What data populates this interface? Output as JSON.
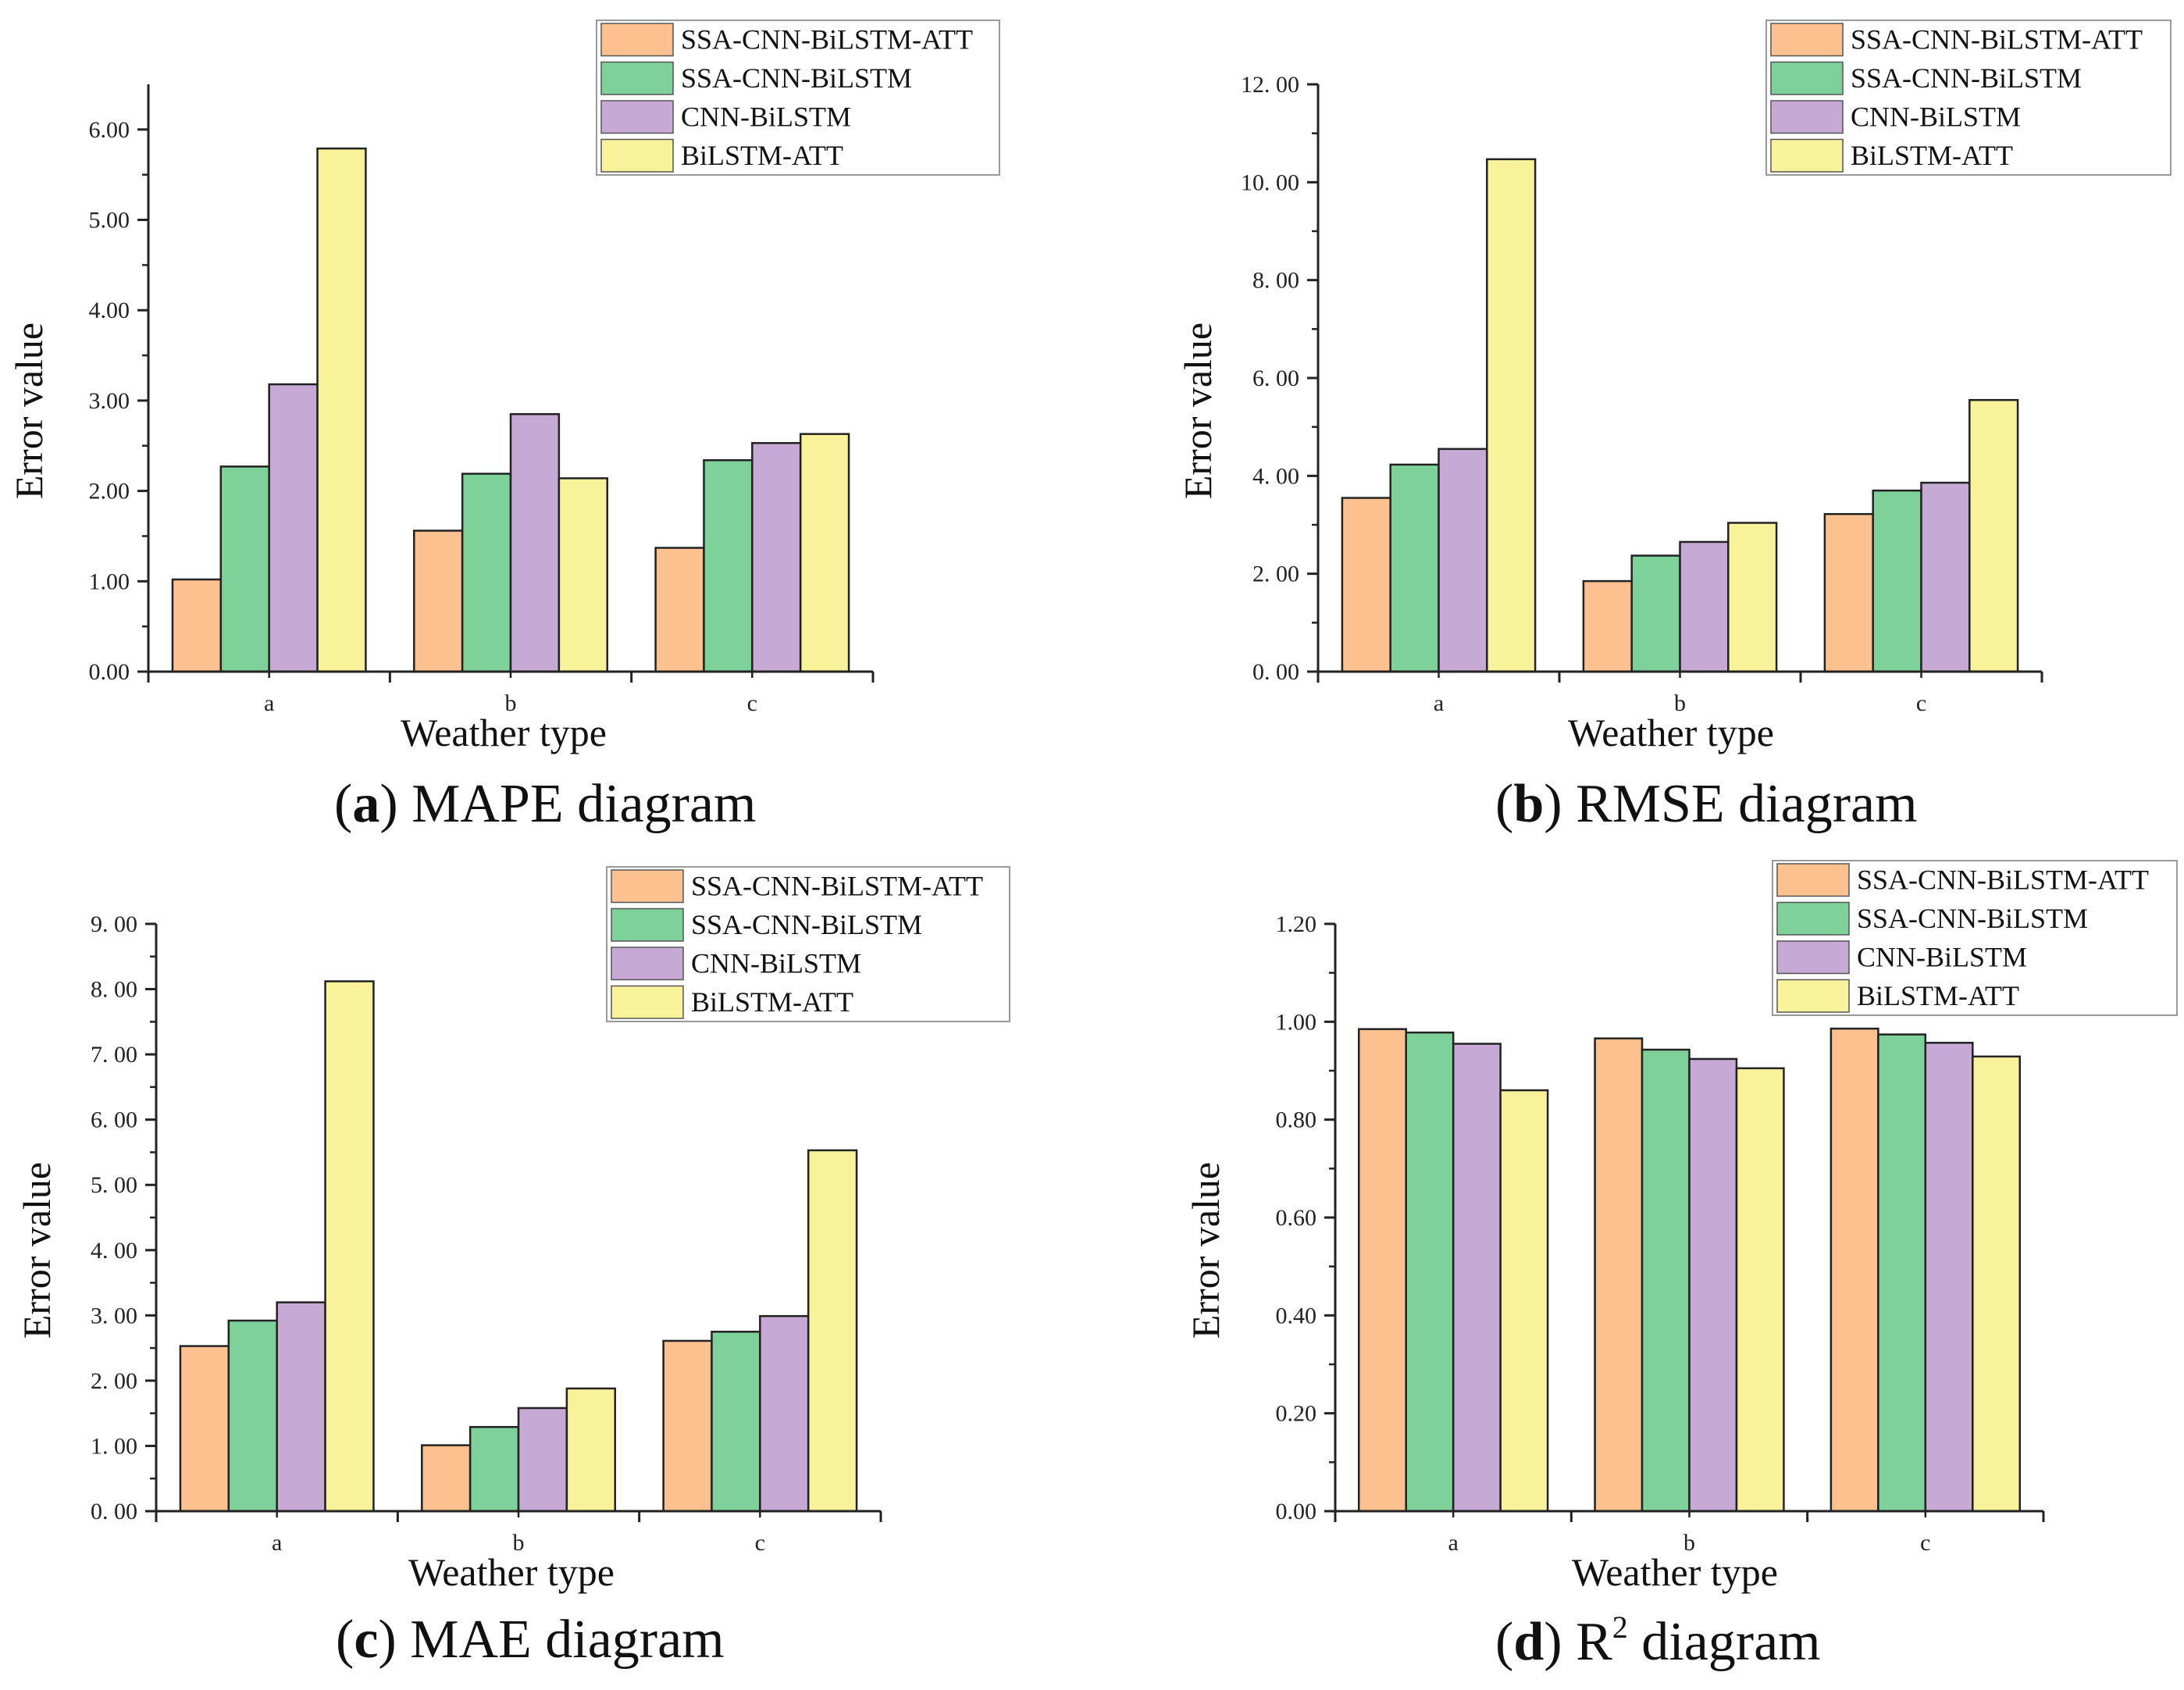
{
  "colors": {
    "SSA-CNN-BiLSTM-ATT": "#FDC190",
    "SSA-CNN-BiLSTM": "#7ED199",
    "CNN-BiLSTM": "#C6A9D4",
    "BiLSTM-ATT": "#F8F29A"
  },
  "captions": [
    {
      "letter": "a",
      "text": "MAPE diagram",
      "sup": ""
    },
    {
      "letter": "b",
      "text": "RMSE diagram",
      "sup": ""
    },
    {
      "letter": "c",
      "text": "MAE diagram",
      "sup": ""
    },
    {
      "letter": "d",
      "text": "R",
      "sup": "2",
      "suffix": " diagram"
    }
  ],
  "chart_data": [
    {
      "type": "bar",
      "title": "",
      "xlabel": "Weather type",
      "ylabel": "Error value",
      "categories": [
        "a",
        "b",
        "c"
      ],
      "ylim": [
        0,
        6.5
      ],
      "yticks": [
        0,
        1,
        2,
        3,
        4,
        5,
        6
      ],
      "yticklabels": [
        "0.00",
        "1.00",
        "2.00",
        "3.00",
        "4.00",
        "5.00",
        "6.00"
      ],
      "legend": "top-right",
      "series": [
        {
          "name": "SSA-CNN-BiLSTM-ATT",
          "values": [
            1.02,
            1.56,
            1.37
          ]
        },
        {
          "name": "SSA-CNN-BiLSTM",
          "values": [
            2.27,
            2.19,
            2.34
          ]
        },
        {
          "name": "CNN-BiLSTM",
          "values": [
            3.18,
            2.85,
            2.53
          ]
        },
        {
          "name": "BiLSTM-ATT",
          "values": [
            5.79,
            2.14,
            2.63
          ]
        }
      ]
    },
    {
      "type": "bar",
      "title": "",
      "xlabel": "Weather type",
      "ylabel": "Error value",
      "categories": [
        "a",
        "b",
        "c"
      ],
      "ylim": [
        0,
        12
      ],
      "yticks": [
        0,
        2,
        4,
        6,
        8,
        10,
        12
      ],
      "yticklabels": [
        "0. 00",
        "2. 00",
        "4. 00",
        "6. 00",
        "8. 00",
        "10. 00",
        "12. 00"
      ],
      "legend": "top-right",
      "series": [
        {
          "name": "SSA-CNN-BiLSTM-ATT",
          "values": [
            3.55,
            1.85,
            3.22
          ]
        },
        {
          "name": "SSA-CNN-BiLSTM",
          "values": [
            4.23,
            2.37,
            3.7
          ]
        },
        {
          "name": "CNN-BiLSTM",
          "values": [
            4.55,
            2.65,
            3.86
          ]
        },
        {
          "name": "BiLSTM-ATT",
          "values": [
            10.47,
            3.04,
            5.55
          ]
        }
      ]
    },
    {
      "type": "bar",
      "title": "",
      "xlabel": "Weather type",
      "ylabel": "Error value",
      "categories": [
        "a",
        "b",
        "c"
      ],
      "ylim": [
        0,
        9
      ],
      "yticks": [
        0,
        1,
        2,
        3,
        4,
        5,
        6,
        7,
        8,
        9
      ],
      "yticklabels": [
        "0. 00",
        "1. 00",
        "2. 00",
        "3. 00",
        "4. 00",
        "5. 00",
        "6. 00",
        "7. 00",
        "8. 00",
        "9. 00"
      ],
      "legend": "top-right",
      "series": [
        {
          "name": "SSA-CNN-BiLSTM-ATT",
          "values": [
            2.53,
            1.01,
            2.61
          ]
        },
        {
          "name": "SSA-CNN-BiLSTM",
          "values": [
            2.92,
            1.29,
            2.75
          ]
        },
        {
          "name": "CNN-BiLSTM",
          "values": [
            3.2,
            1.58,
            2.99
          ]
        },
        {
          "name": "BiLSTM-ATT",
          "values": [
            8.12,
            1.88,
            5.53
          ]
        }
      ]
    },
    {
      "type": "bar",
      "title": "",
      "xlabel": "Weather type",
      "ylabel": "Error value",
      "categories": [
        "a",
        "b",
        "c"
      ],
      "ylim": [
        0,
        1.2
      ],
      "yticks": [
        0,
        0.2,
        0.4,
        0.6,
        0.8,
        1.0,
        1.2
      ],
      "yticklabels": [
        "0.00",
        "0.20",
        "0.40",
        "0.60",
        "0.80",
        "1.00",
        "1.20"
      ],
      "legend": "top-right",
      "series": [
        {
          "name": "SSA-CNN-BiLSTM-ATT",
          "values": [
            0.985,
            0.966,
            0.986
          ]
        },
        {
          "name": "SSA-CNN-BiLSTM",
          "values": [
            0.978,
            0.943,
            0.974
          ]
        },
        {
          "name": "CNN-BiLSTM",
          "values": [
            0.955,
            0.924,
            0.957
          ]
        },
        {
          "name": "BiLSTM-ATT",
          "values": [
            0.86,
            0.905,
            0.929
          ]
        }
      ]
    }
  ]
}
